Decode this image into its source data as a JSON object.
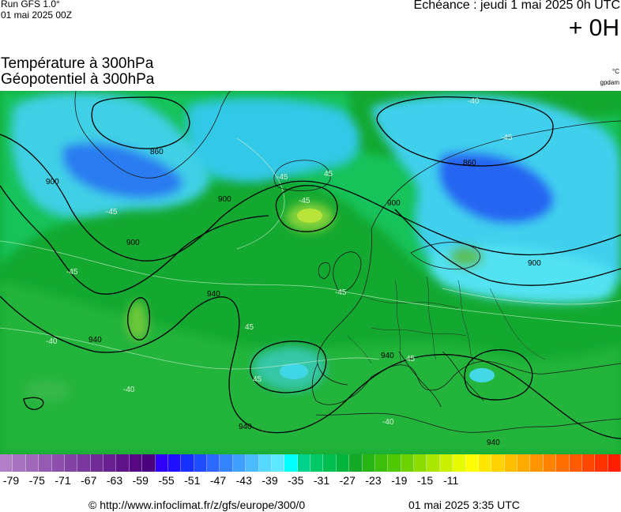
{
  "header": {
    "run": "Run GFS 1.0°",
    "run_date": "01 mai 2025 00Z",
    "echeance": "Echéance : jeudi 1 mai 2025 0h UTC",
    "offset": "+ 0H",
    "title_temp": "Température à 300hPa",
    "title_geo": "Géopotentiel à 300hPa",
    "unit_temp": "°C",
    "unit_geo": "gpdam"
  },
  "map": {
    "isoline_labels": {
      "geo_860_a": "860",
      "geo_860_b": "860",
      "geo_900_a": "900",
      "geo_900_b": "900",
      "geo_900_c": "900",
      "geo_900_d": "900",
      "geo_900_e": "900",
      "geo_940_a": "940",
      "geo_940_b": "940",
      "geo_940_c": "940",
      "geo_940_d": "940",
      "geo_940_e": "940"
    },
    "temp_labels": {
      "t1": "-40",
      "t2": "-45",
      "t3": "-45",
      "t4": "-45",
      "t5": "45",
      "t6": "-45",
      "t7": "-40",
      "t8": "-40",
      "t9": "45",
      "t10": "45",
      "t11": "-40",
      "t12": "-45",
      "t13": "-45",
      "t14": "45"
    }
  },
  "colorbar": {
    "colors": [
      "#b07fc8",
      "#a773c1",
      "#9e67ba",
      "#955bb3",
      "#8c4fac",
      "#8343a5",
      "#7a379e",
      "#712b97",
      "#681f90",
      "#5f1389",
      "#560782",
      "#4b007e",
      "#2d00f5",
      "#1f10ff",
      "#1730ff",
      "#1f4cff",
      "#2a68ff",
      "#3584ff",
      "#40a0ff",
      "#4bbcff",
      "#56d8ff",
      "#5ee8ff",
      "#00ffff",
      "#00d28c",
      "#00c864",
      "#00be50",
      "#00b43c",
      "#14aa28",
      "#28b414",
      "#3cbe0a",
      "#50c800",
      "#6ed200",
      "#8cdc00",
      "#aae600",
      "#c8f000",
      "#e6fa00",
      "#ffff00",
      "#ffe600",
      "#ffd200",
      "#ffbe00",
      "#ffaa00",
      "#ff9600",
      "#ff8200",
      "#ff6e00",
      "#ff5a00",
      "#ff4600",
      "#ff3200",
      "#ff1e00"
    ],
    "ticks": [
      "-79",
      "-75",
      "-71",
      "-67",
      "-63",
      "-59",
      "-55",
      "-51",
      "-47",
      "-43",
      "-39",
      "-35",
      "-31",
      "-27",
      "-23",
      "-19",
      "-15",
      "-11"
    ]
  },
  "footer": {
    "credit": "© http://www.infoclimat.fr/z/gfs/europe/300/0",
    "timestamp": "01 mai 2025  3:35 UTC"
  }
}
